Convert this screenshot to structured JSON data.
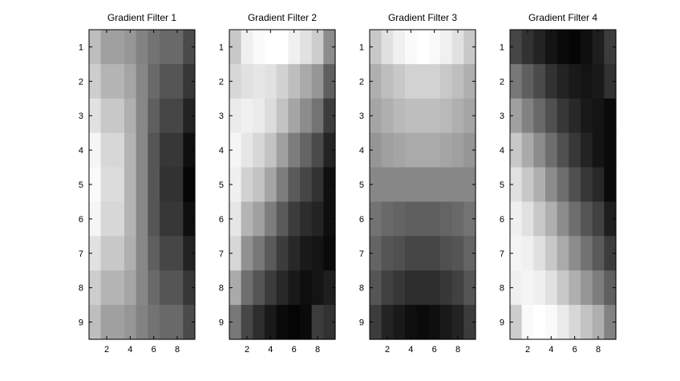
{
  "chart_data": [
    {
      "type": "heatmap",
      "title": "Gradient Filter 1",
      "xlabel": "",
      "ylabel": "",
      "colormap": "gray",
      "color_range": [
        0,
        255
      ],
      "xticks": [
        "2",
        "4",
        "6",
        "8"
      ],
      "yticks": [
        "1",
        "2",
        "3",
        "4",
        "5",
        "6",
        "7",
        "8",
        "9"
      ],
      "values": [
        [
          190,
          160,
          160,
          150,
          130,
          115,
          105,
          105,
          75
        ],
        [
          205,
          180,
          180,
          165,
          135,
          105,
          85,
          85,
          55
        ],
        [
          225,
          200,
          200,
          175,
          135,
          95,
          70,
          70,
          35
        ],
        [
          245,
          215,
          215,
          180,
          135,
          85,
          55,
          55,
          15
        ],
        [
          250,
          220,
          220,
          180,
          135,
          85,
          50,
          50,
          5
        ],
        [
          245,
          215,
          215,
          180,
          135,
          85,
          55,
          55,
          15
        ],
        [
          225,
          200,
          200,
          175,
          135,
          95,
          70,
          70,
          35
        ],
        [
          205,
          180,
          180,
          165,
          135,
          105,
          85,
          85,
          55
        ],
        [
          190,
          160,
          160,
          150,
          130,
          115,
          105,
          105,
          75
        ]
      ]
    },
    {
      "type": "heatmap",
      "title": "Gradient Filter 2",
      "xlabel": "",
      "ylabel": "",
      "colormap": "gray",
      "color_range": [
        0,
        255
      ],
      "xticks": [
        "2",
        "4",
        "6",
        "8"
      ],
      "yticks": [
        "1",
        "2",
        "3",
        "4",
        "5",
        "6",
        "7",
        "8",
        "9"
      ],
      "values": [
        [
          200,
          240,
          250,
          255,
          255,
          240,
          225,
          205,
          140
        ],
        [
          215,
          225,
          230,
          225,
          210,
          190,
          170,
          150,
          95
        ],
        [
          235,
          240,
          235,
          220,
          195,
          165,
          140,
          115,
          60
        ],
        [
          245,
          230,
          215,
          195,
          160,
          125,
          100,
          75,
          35
        ],
        [
          240,
          210,
          195,
          165,
          125,
          90,
          70,
          50,
          15
        ],
        [
          230,
          180,
          160,
          125,
          90,
          60,
          45,
          35,
          15
        ],
        [
          215,
          145,
          120,
          90,
          60,
          40,
          25,
          20,
          10
        ],
        [
          170,
          110,
          85,
          60,
          40,
          25,
          15,
          20,
          30
        ],
        [
          120,
          70,
          45,
          25,
          10,
          5,
          10,
          60,
          50
        ]
      ]
    },
    {
      "type": "heatmap",
      "title": "Gradient Filter 3",
      "xlabel": "",
      "ylabel": "",
      "colormap": "gray",
      "color_range": [
        0,
        255
      ],
      "xticks": [
        "2",
        "4",
        "6",
        "8"
      ],
      "yticks": [
        "1",
        "2",
        "3",
        "4",
        "5",
        "6",
        "7",
        "8",
        "9"
      ],
      "values": [
        [
          200,
          225,
          240,
          250,
          255,
          250,
          240,
          225,
          200
        ],
        [
          175,
          190,
          200,
          210,
          210,
          210,
          200,
          190,
          175
        ],
        [
          165,
          175,
          185,
          190,
          190,
          190,
          185,
          175,
          165
        ],
        [
          150,
          160,
          165,
          170,
          170,
          170,
          165,
          160,
          150
        ],
        [
          135,
          135,
          135,
          135,
          135,
          135,
          135,
          135,
          135
        ],
        [
          115,
          105,
          100,
          95,
          95,
          95,
          100,
          105,
          115
        ],
        [
          100,
          85,
          80,
          70,
          70,
          70,
          80,
          85,
          100
        ],
        [
          85,
          65,
          55,
          45,
          45,
          45,
          55,
          65,
          85
        ],
        [
          60,
          35,
          25,
          15,
          10,
          15,
          25,
          35,
          60
        ]
      ]
    },
    {
      "type": "heatmap",
      "title": "Gradient Filter 4",
      "xlabel": "",
      "ylabel": "",
      "colormap": "gray",
      "color_range": [
        0,
        255
      ],
      "xticks": [
        "2",
        "4",
        "6",
        "8"
      ],
      "yticks": [
        "1",
        "2",
        "3",
        "4",
        "5",
        "6",
        "7",
        "8",
        "9"
      ],
      "values": [
        [
          70,
          50,
          35,
          20,
          10,
          5,
          15,
          30,
          60
        ],
        [
          120,
          95,
          75,
          50,
          35,
          25,
          20,
          25,
          50
        ],
        [
          160,
          130,
          105,
          80,
          55,
          40,
          25,
          20,
          10
        ],
        [
          200,
          170,
          140,
          110,
          80,
          55,
          35,
          20,
          10
        ],
        [
          225,
          200,
          175,
          140,
          110,
          80,
          55,
          40,
          10
        ],
        [
          240,
          225,
          200,
          175,
          140,
          110,
          85,
          65,
          30
        ],
        [
          245,
          240,
          225,
          200,
          170,
          140,
          115,
          90,
          60
        ],
        [
          240,
          245,
          240,
          225,
          200,
          175,
          150,
          125,
          95
        ],
        [
          205,
          250,
          255,
          250,
          235,
          215,
          195,
          175,
          130
        ]
      ]
    }
  ]
}
